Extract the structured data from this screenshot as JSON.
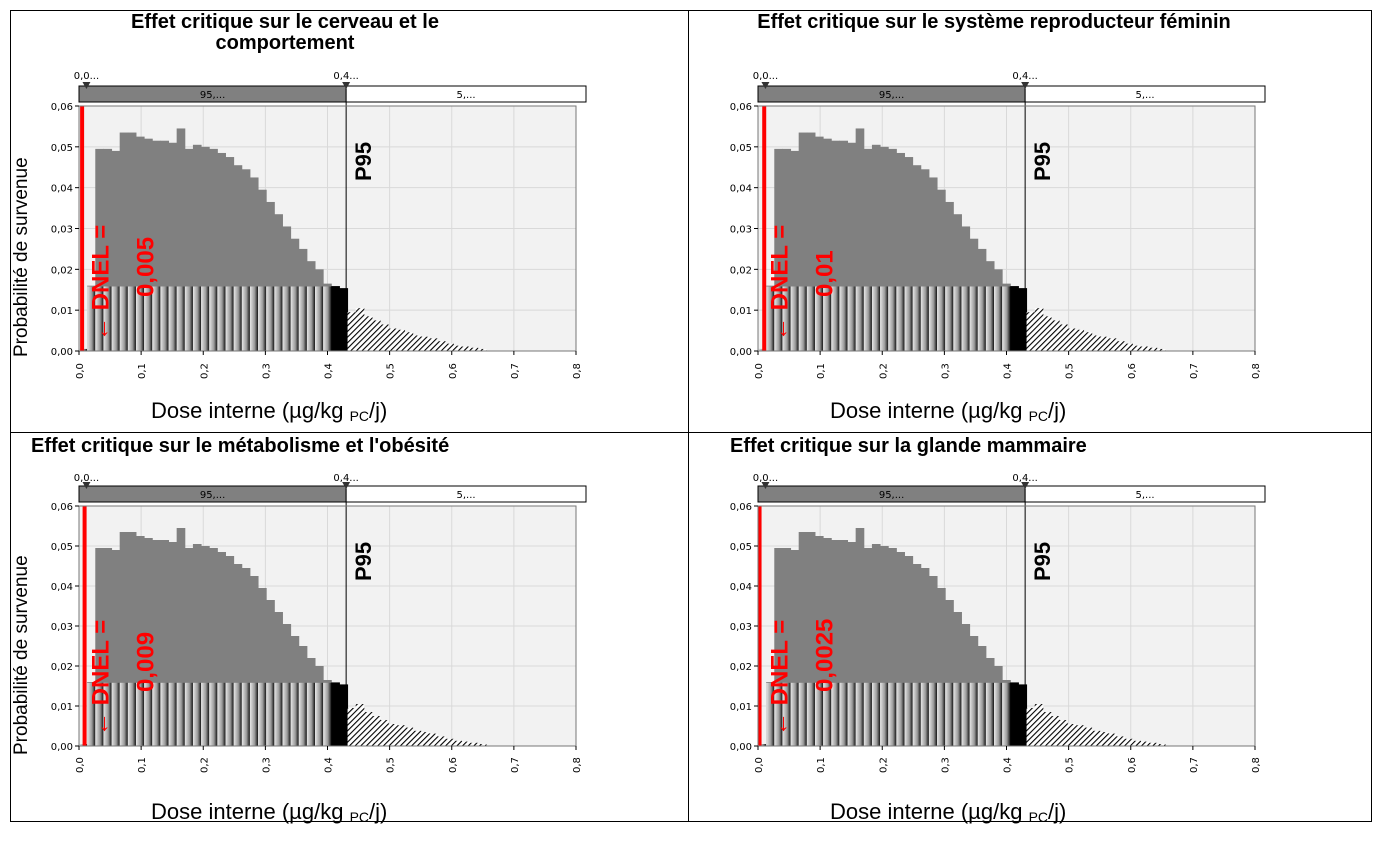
{
  "panels": [
    {
      "title": "Effet critique sur le cerveau et le comportement",
      "dnel_label": "DNEL =",
      "dnel_value": "0,005",
      "arrow": "←"
    },
    {
      "title": "Effet critique sur le système reproducteur féminin",
      "dnel_label": "DNEL =",
      "dnel_value": "0,01",
      "arrow": "←"
    },
    {
      "title": "Effet critique sur le métabolisme et l'obésité",
      "dnel_label": "DNEL =",
      "dnel_value": "0,009",
      "arrow": "←"
    },
    {
      "title": "Effet critique sur la glande mammaire",
      "dnel_label": "DNEL =",
      "dnel_value": "0,0025",
      "arrow": "←"
    }
  ],
  "shared": {
    "ylabel": "Probabilité de survenue",
    "xlabel_main": "Dose interne (µg/kg ",
    "xlabel_sub": "PC",
    "xlabel_end": "/j)",
    "p95_label": "P95",
    "band_left_value": "0,0...",
    "band_right_value": "0,4...",
    "band_left_pct": "95,...",
    "band_right_pct": "5,..."
  },
  "colors": {
    "dnel": "#ff0000",
    "bar_grey": "#808080",
    "plot_bg": "#f2f2f2",
    "band_dark": "#808080"
  },
  "chart_data": {
    "type": "bar",
    "xlim": [
      0,
      0.8
    ],
    "ylim": [
      0,
      0.06
    ],
    "xticks": [
      "0,0",
      "0,1",
      "0,2",
      "0,3",
      "0,4",
      "0,5",
      "0,6",
      "0,7",
      "0,8"
    ],
    "yticks": [
      "0,00",
      "0,01",
      "0,02",
      "0,03",
      "0,04",
      "0,05",
      "0,06"
    ],
    "bin_width": 0.0131,
    "p95": 0.43,
    "dnel": [
      0.005,
      0.01,
      0.009,
      0.0025
    ],
    "bin_starts": [
      0.0,
      0.0131,
      0.0262,
      0.0393,
      0.0524,
      0.0655,
      0.0786,
      0.0917,
      0.1048,
      0.1179,
      0.131,
      0.1441,
      0.1572,
      0.1703,
      0.1834,
      0.1965,
      0.2096,
      0.2227,
      0.2358,
      0.2489,
      0.262,
      0.2751,
      0.2882,
      0.3013,
      0.3144,
      0.3275,
      0.3406,
      0.3537,
      0.3668,
      0.3799,
      0.393,
      0.4061,
      0.4192,
      0.4323,
      0.4454,
      0.4585,
      0.4716,
      0.4847,
      0.4978,
      0.5109,
      0.524,
      0.5371,
      0.5502,
      0.5633,
      0.5764,
      0.5895,
      0.6026,
      0.6157,
      0.6288,
      0.6419,
      0.655
    ],
    "values": [
      0.0005,
      0.016,
      0.0495,
      0.0495,
      0.049,
      0.0535,
      0.0535,
      0.0525,
      0.052,
      0.0515,
      0.0515,
      0.051,
      0.0545,
      0.0495,
      0.0505,
      0.05,
      0.0495,
      0.0485,
      0.0475,
      0.0455,
      0.0445,
      0.0425,
      0.0395,
      0.0365,
      0.0335,
      0.0305,
      0.0275,
      0.025,
      0.022,
      0.02,
      0.0165,
      0.0159,
      0.0154,
      0.0095,
      0.0105,
      0.0085,
      0.0075,
      0.0065,
      0.0055,
      0.0052,
      0.0046,
      0.0038,
      0.0035,
      0.0031,
      0.0024,
      0.0018,
      0.0013,
      0.0011,
      0.0008,
      0.0005,
      0.0
    ]
  }
}
